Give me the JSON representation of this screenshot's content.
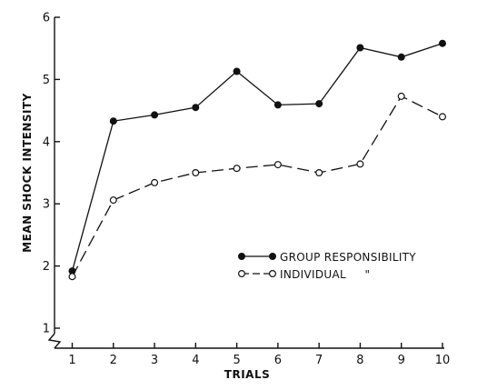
{
  "chart_data": {
    "type": "line",
    "title": "",
    "xlabel": "TRIALS",
    "ylabel": "MEAN SHOCK INTENSITY",
    "x": [
      1,
      2,
      3,
      4,
      5,
      6,
      7,
      8,
      9,
      10
    ],
    "xlim": [
      0.5,
      10
    ],
    "ylim": [
      1,
      6
    ],
    "x_ticks": [
      "1",
      "2",
      "3",
      "4",
      "5",
      "6",
      "7",
      "8",
      "9",
      "10"
    ],
    "y_ticks": [
      "1",
      "2",
      "3",
      "4",
      "5",
      "6"
    ],
    "grid": false,
    "legend_position": "lower-right",
    "series": [
      {
        "name": "GROUP RESPONSIBILITY",
        "style": "solid",
        "marker": "filled-circle",
        "values": [
          1.92,
          4.33,
          4.43,
          4.55,
          5.13,
          4.59,
          4.61,
          5.51,
          5.36,
          5.58
        ]
      },
      {
        "name": "INDIVIDUAL     \"",
        "style": "dashed",
        "marker": "open-circle",
        "values": [
          1.83,
          3.06,
          3.34,
          3.5,
          3.57,
          3.63,
          3.5,
          3.64,
          4.73,
          4.4
        ]
      }
    ],
    "colors": {
      "line": "#111111",
      "background": "#ffffff"
    }
  }
}
